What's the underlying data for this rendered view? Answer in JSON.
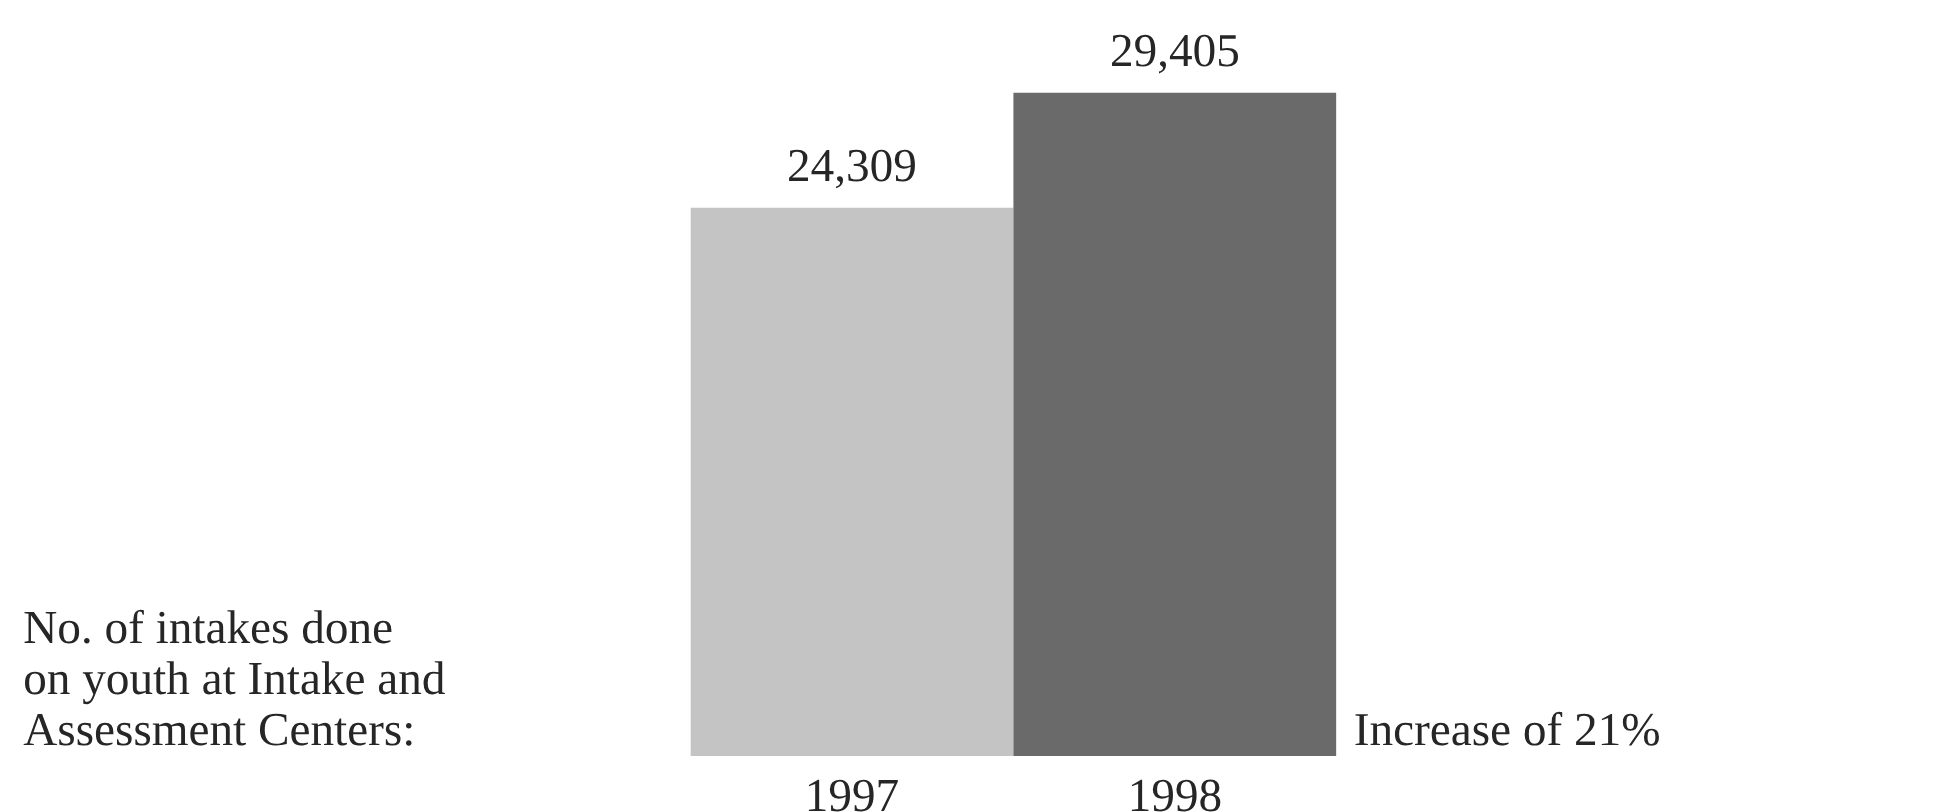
{
  "chart_data": {
    "type": "bar",
    "categories": [
      "1997",
      "1998"
    ],
    "values": [
      24309,
      29405
    ],
    "colors": [
      "#c4c4c4",
      "#6a6a6a"
    ],
    "data_labels": true,
    "value_labels": [
      "24,309",
      "29,405"
    ],
    "annotations": [
      "No. of intakes done\non youth at Intake and\nAssessment Centers:",
      "Increase of 21%"
    ]
  }
}
